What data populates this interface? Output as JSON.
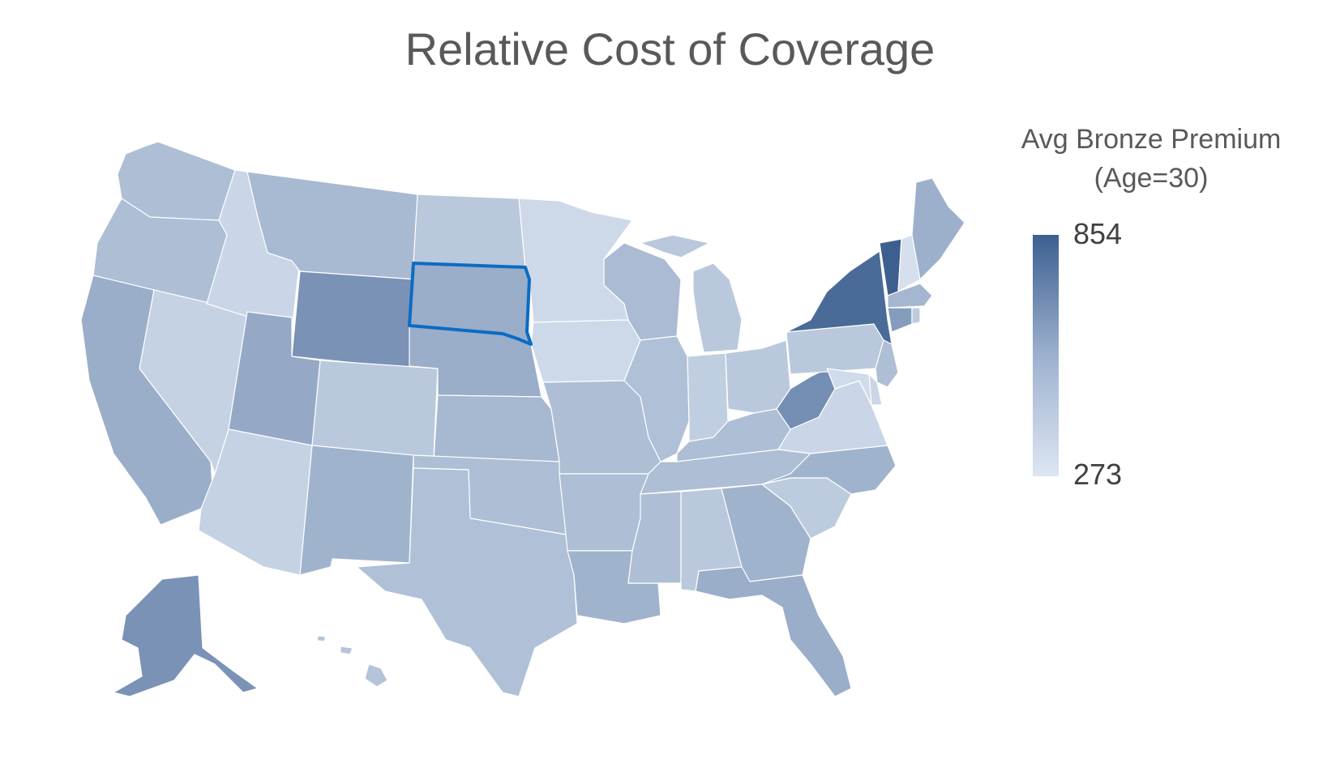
{
  "title": "Relative Cost of Coverage",
  "legend": {
    "title_line1": "Avg Bronze Premium",
    "title_line2": "(Age=30)",
    "max_label": "854",
    "min_label": "273",
    "color_max": "#3d5f90",
    "color_min": "#dde6f3"
  },
  "highlight_state": "SD",
  "chart_data": {
    "type": "choropleth",
    "metric": "Avg Bronze Premium (Age=30)",
    "range": [
      273,
      854
    ],
    "relative_level": {
      "WA": 0.3,
      "OR": 0.3,
      "CA": 0.42,
      "ID": 0.12,
      "NV": 0.15,
      "MT": 0.33,
      "WY": 0.62,
      "UT": 0.45,
      "AZ": 0.15,
      "CO": 0.22,
      "NM": 0.38,
      "ND": 0.22,
      "SD": 0.42,
      "NE": 0.42,
      "KS": 0.34,
      "OK": 0.3,
      "TX": 0.28,
      "MN": 0.1,
      "IA": 0.1,
      "MO": 0.3,
      "AR": 0.3,
      "LA": 0.38,
      "WI": 0.32,
      "IL": 0.28,
      "MI": 0.22,
      "IN": 0.18,
      "OH": 0.22,
      "KY": 0.3,
      "TN": 0.3,
      "MS": 0.3,
      "AL": 0.22,
      "GA": 0.38,
      "FL": 0.42,
      "SC": 0.2,
      "NC": 0.38,
      "VA": 0.12,
      "WV": 0.65,
      "PA": 0.22,
      "NY": 0.92,
      "VT": 1.0,
      "NH": 0.05,
      "ME": 0.4,
      "MA": 0.35,
      "CT": 0.55,
      "RI": 0.2,
      "NJ": 0.3,
      "DE": 0.12,
      "MD": 0.08,
      "AK": 0.62,
      "HI": 0.25
    }
  }
}
